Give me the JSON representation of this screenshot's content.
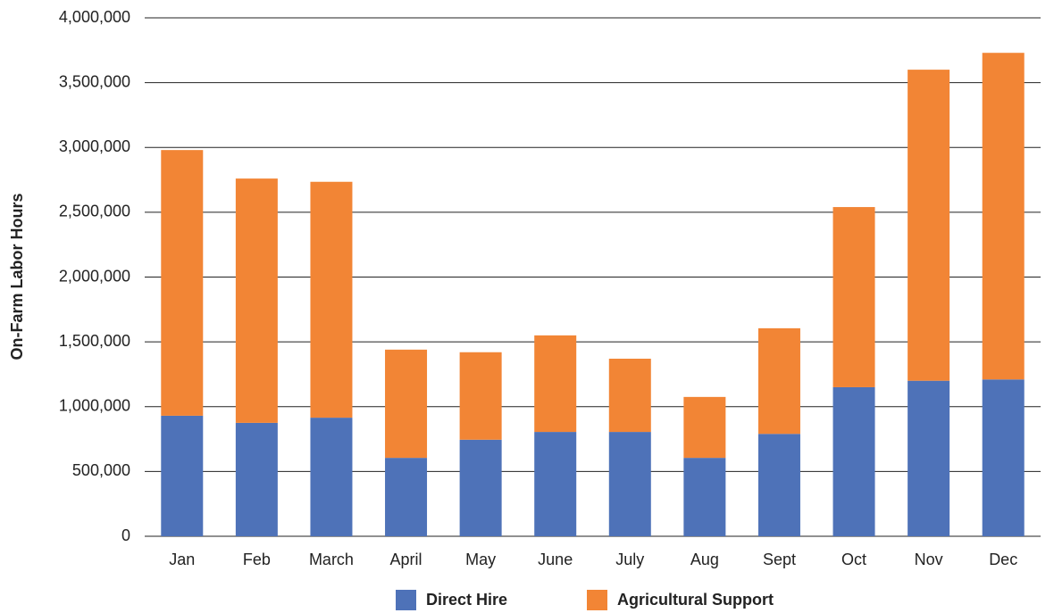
{
  "chart_data": {
    "type": "stacked_bar",
    "y_label": "On-Farm Labor Hours",
    "categories": [
      "Jan",
      "Feb",
      "March",
      "April",
      "May",
      "June",
      "July",
      "Aug",
      "Sept",
      "Oct",
      "Nov",
      "Dec"
    ],
    "series": [
      {
        "name": "Direct Hire",
        "color": "#4e72b8",
        "values": [
          930000,
          875000,
          915000,
          605000,
          745000,
          805000,
          805000,
          605000,
          790000,
          1150000,
          1200000,
          1210000
        ]
      },
      {
        "name": "Agricultural Support",
        "color": "#f28535",
        "values": [
          2050000,
          1885000,
          1820000,
          835000,
          675000,
          745000,
          565000,
          470000,
          815000,
          1390000,
          2400000,
          2520000
        ]
      }
    ],
    "ylim": [
      0,
      4000000
    ],
    "yticks": [
      0,
      {
        "value": 500000,
        "label": "500,000"
      },
      {
        "value": 1000000,
        "label": "1,000,000"
      },
      {
        "value": 1500000,
        "label": "1,500,000"
      },
      {
        "value": 2000000,
        "label": "2,000,000"
      },
      {
        "value": 2500000,
        "label": "2,500,000"
      },
      {
        "value": 3000000,
        "label": "3,000,000"
      },
      {
        "value": 3500000,
        "label": "3,500,000"
      },
      {
        "value": 4000000,
        "label": "4,000,000"
      }
    ],
    "grid": true,
    "legend": "bottom"
  }
}
